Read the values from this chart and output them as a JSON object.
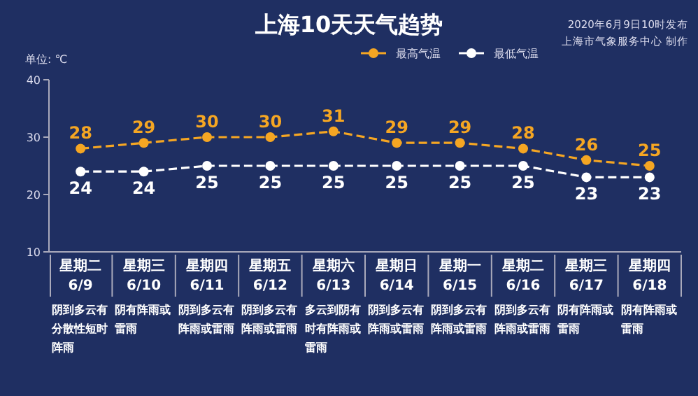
{
  "chart_data": {
    "type": "line",
    "title": "上海10天天气趋势",
    "ylabel": "单位: ℃",
    "categories": [
      "星期二\n6/9",
      "星期三\n6/10",
      "星期四\n6/11",
      "星期五\n6/12",
      "星期六\n6/13",
      "星期日\n6/14",
      "星期一\n6/15",
      "星期二\n6/16",
      "星期三\n6/17",
      "星期四\n6/18"
    ],
    "series": [
      {
        "name": "最高气温",
        "color": "#f5a623",
        "values": [
          28,
          29,
          30,
          30,
          31,
          29,
          29,
          28,
          26,
          25
        ]
      },
      {
        "name": "最低气温",
        "color": "#ffffff",
        "values": [
          24,
          24,
          25,
          25,
          25,
          25,
          25,
          25,
          23,
          23
        ]
      }
    ],
    "ylim": [
      10,
      40
    ],
    "yticks": [
      10,
      20,
      30,
      40
    ],
    "grid": false,
    "legend": "top",
    "marker": "circle",
    "line_style": "dashed",
    "data_labels": true,
    "annotations": [
      "2020年6月9日10时发布",
      "上海市气象服务中心 制作",
      "阴到多云有分散性短时阵雨",
      "阴有阵雨或雷雨",
      "阴到多云有阵雨或雷雨",
      "阴到多云有阵雨或雷雨",
      "多云到阴有时有阵雨或雷雨",
      "阴到多云有阵雨或雷雨",
      "阴到多云有阵雨或雷雨",
      "阴到多云有阵雨或雷雨",
      "阴有阵雨或雷雨",
      "阴有阵雨或雷雨"
    ]
  }
}
